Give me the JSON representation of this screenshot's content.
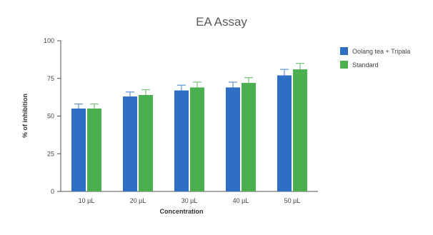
{
  "chart_data": {
    "type": "bar",
    "title": "EA Assay",
    "xlabel": "Concentration",
    "ylabel": "% of inhibition",
    "categories": [
      "10 µL",
      "20 µL",
      "30 µL",
      "40 µL",
      "50 µL"
    ],
    "series": [
      {
        "name": "Oolang tea + Tripala",
        "color": "#2e6fc4",
        "values": [
          55,
          63,
          67,
          69,
          77
        ],
        "errors": [
          3,
          3,
          3.5,
          3.5,
          4
        ]
      },
      {
        "name": "Standard",
        "color": "#4caf50",
        "values": [
          55,
          64,
          69,
          72,
          81
        ],
        "errors": [
          3,
          3.5,
          3.5,
          3.5,
          4
        ]
      }
    ],
    "ylim": [
      0,
      100
    ],
    "yticks": [
      0,
      25,
      50,
      75,
      100
    ],
    "grid": false,
    "legend": "right"
  }
}
